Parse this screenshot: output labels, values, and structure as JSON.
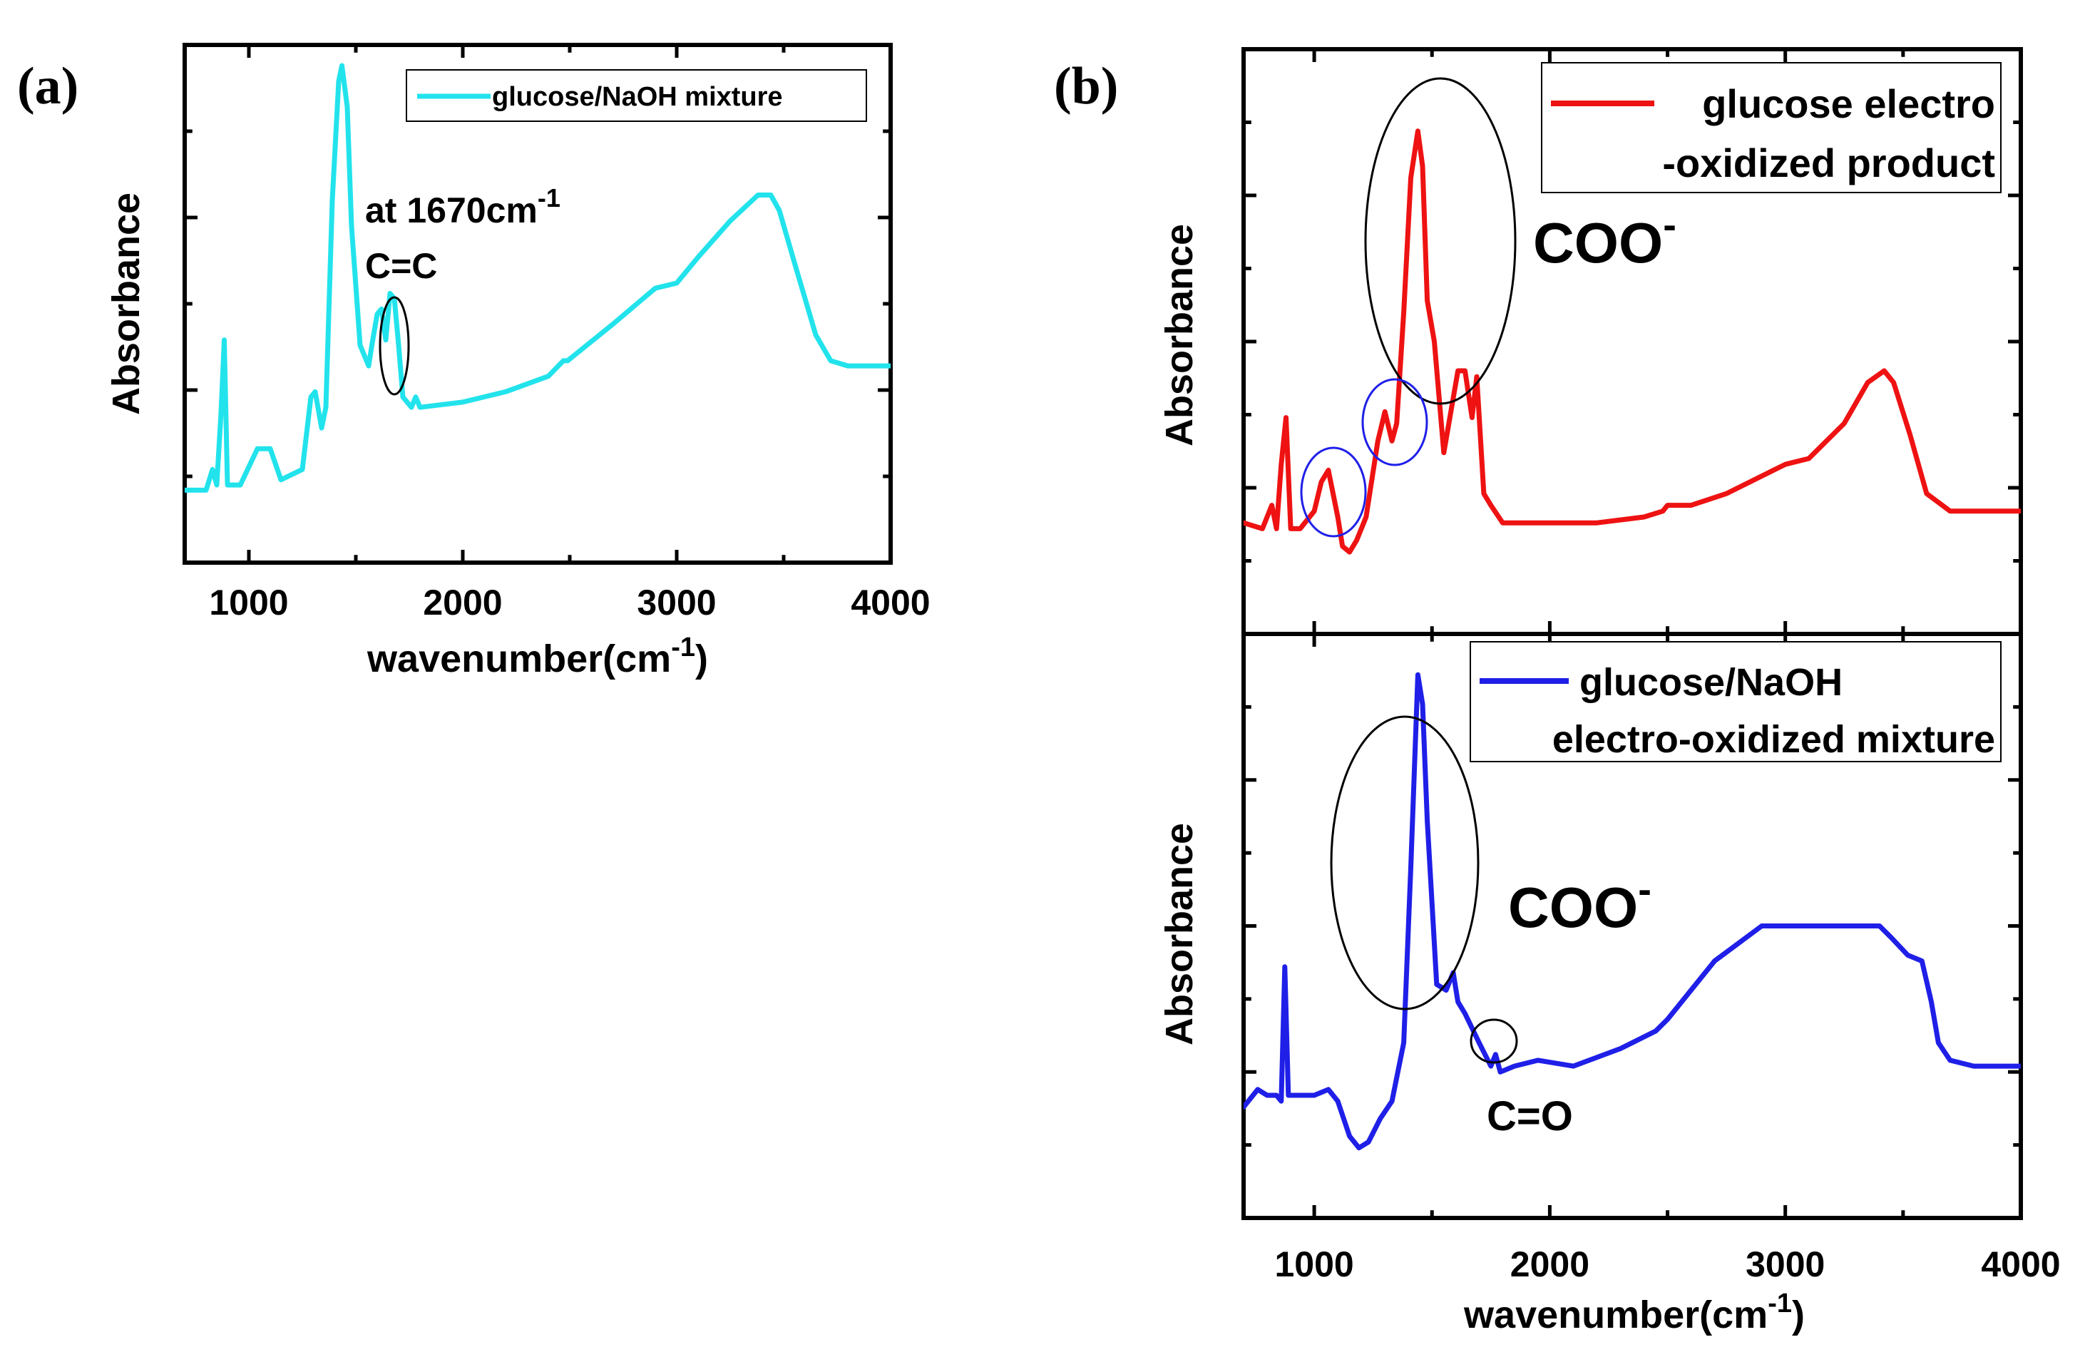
{
  "panels": {
    "a": {
      "label": "(a)"
    },
    "b": {
      "label": "(b)"
    }
  },
  "annotations": {
    "a_peak": "at 1670cm",
    "a_peak_sup": "-1",
    "a_cc": "C=C",
    "b_top_coo": "COO",
    "b_top_coo_sup": "-",
    "b_bot_coo": "COO",
    "b_bot_coo_sup": "-",
    "b_bot_co": "C=O"
  },
  "chart_data": [
    {
      "id": "a",
      "type": "line",
      "title": "",
      "xlabel": "wavenumber(cm",
      "xlabel_sup": "-1",
      "xlabel_end": ")",
      "ylabel": "Absorbance",
      "xlim": [
        700,
        4000
      ],
      "ylim": [
        0,
        1
      ],
      "xticks": [
        1000,
        2000,
        3000,
        4000
      ],
      "legend": {
        "placement": "top-right",
        "label": "glucose/NaOH mixture"
      },
      "series": [
        {
          "name": "glucose/NaOH mixture",
          "color": "#22e3ec",
          "x": [
            700,
            800,
            830,
            850,
            870,
            885,
            900,
            960,
            1040,
            1100,
            1150,
            1250,
            1290,
            1310,
            1340,
            1360,
            1390,
            1420,
            1435,
            1460,
            1480,
            1520,
            1560,
            1575,
            1600,
            1620,
            1640,
            1660,
            1680,
            1700,
            1720,
            1760,
            1780,
            1800,
            2000,
            2200,
            2400,
            2470,
            2490,
            2550,
            2700,
            2900,
            3000,
            3100,
            3250,
            3380,
            3440,
            3480,
            3550,
            3650,
            3720,
            3800,
            3900,
            4000
          ],
          "y": [
            0.14,
            0.14,
            0.18,
            0.15,
            0.29,
            0.43,
            0.15,
            0.15,
            0.22,
            0.22,
            0.16,
            0.18,
            0.32,
            0.33,
            0.26,
            0.3,
            0.7,
            0.93,
            0.96,
            0.88,
            0.65,
            0.42,
            0.38,
            0.42,
            0.48,
            0.49,
            0.43,
            0.52,
            0.51,
            0.42,
            0.32,
            0.3,
            0.32,
            0.3,
            0.31,
            0.33,
            0.36,
            0.39,
            0.39,
            0.41,
            0.46,
            0.53,
            0.54,
            0.59,
            0.66,
            0.71,
            0.71,
            0.68,
            0.58,
            0.44,
            0.39,
            0.38,
            0.38,
            0.38
          ]
        }
      ]
    },
    {
      "id": "b_top",
      "type": "line",
      "title": "",
      "xlabel": "",
      "ylabel": "Absorbance",
      "xlim": [
        700,
        4000
      ],
      "ylim": [
        0,
        1
      ],
      "legend": {
        "placement": "top-right",
        "lines": [
          "glucose electro",
          "-oxidized product"
        ]
      },
      "series": [
        {
          "name": "glucose electro-oxidized product",
          "color": "#ee1212",
          "x": [
            700,
            780,
            820,
            840,
            860,
            880,
            900,
            940,
            1000,
            1030,
            1060,
            1100,
            1120,
            1150,
            1180,
            1220,
            1270,
            1300,
            1330,
            1350,
            1380,
            1410,
            1440,
            1460,
            1480,
            1510,
            1550,
            1580,
            1610,
            1640,
            1670,
            1690,
            1720,
            1750,
            1800,
            1900,
            2000,
            2200,
            2400,
            2480,
            2500,
            2600,
            2750,
            2950,
            3000,
            3100,
            3250,
            3350,
            3420,
            3460,
            3530,
            3600,
            3700,
            3800,
            4000
          ],
          "y": [
            0.19,
            0.18,
            0.22,
            0.18,
            0.29,
            0.37,
            0.18,
            0.18,
            0.21,
            0.26,
            0.28,
            0.2,
            0.15,
            0.14,
            0.16,
            0.2,
            0.33,
            0.38,
            0.33,
            0.36,
            0.55,
            0.78,
            0.86,
            0.8,
            0.57,
            0.5,
            0.31,
            0.38,
            0.45,
            0.45,
            0.37,
            0.44,
            0.24,
            0.22,
            0.19,
            0.19,
            0.19,
            0.19,
            0.2,
            0.21,
            0.22,
            0.22,
            0.24,
            0.28,
            0.29,
            0.3,
            0.36,
            0.43,
            0.45,
            0.43,
            0.34,
            0.24,
            0.21,
            0.21,
            0.21
          ]
        }
      ]
    },
    {
      "id": "b_bottom",
      "type": "line",
      "title": "",
      "xlabel": "wavenumber(cm",
      "xlabel_sup": "-1",
      "xlabel_end": ")",
      "ylabel": "Absorbance",
      "xlim": [
        700,
        4000
      ],
      "ylim": [
        0,
        1
      ],
      "xticks": [
        1000,
        2000,
        3000,
        4000
      ],
      "legend": {
        "placement": "top-right",
        "lines": [
          "glucose/NaOH",
          "electro-oxidized mixture"
        ]
      },
      "series": [
        {
          "name": "glucose/NaOH electro-oxidized mixture",
          "color": "#1f1fe8",
          "x": [
            700,
            760,
            800,
            840,
            860,
            875,
            890,
            940,
            1000,
            1060,
            1100,
            1150,
            1190,
            1230,
            1280,
            1330,
            1380,
            1410,
            1440,
            1460,
            1480,
            1520,
            1560,
            1590,
            1610,
            1640,
            1700,
            1750,
            1770,
            1790,
            1850,
            1950,
            2100,
            2300,
            2450,
            2500,
            2700,
            2900,
            3000,
            3200,
            3400,
            3450,
            3520,
            3580,
            3620,
            3650,
            3700,
            3800,
            4000
          ],
          "y": [
            0.19,
            0.22,
            0.21,
            0.21,
            0.2,
            0.43,
            0.21,
            0.21,
            0.21,
            0.22,
            0.2,
            0.14,
            0.12,
            0.13,
            0.17,
            0.2,
            0.3,
            0.6,
            0.93,
            0.88,
            0.68,
            0.4,
            0.39,
            0.42,
            0.37,
            0.35,
            0.3,
            0.26,
            0.28,
            0.25,
            0.26,
            0.27,
            0.26,
            0.29,
            0.32,
            0.34,
            0.44,
            0.5,
            0.5,
            0.5,
            0.5,
            0.48,
            0.45,
            0.44,
            0.37,
            0.3,
            0.27,
            0.26,
            0.26
          ]
        }
      ]
    }
  ]
}
